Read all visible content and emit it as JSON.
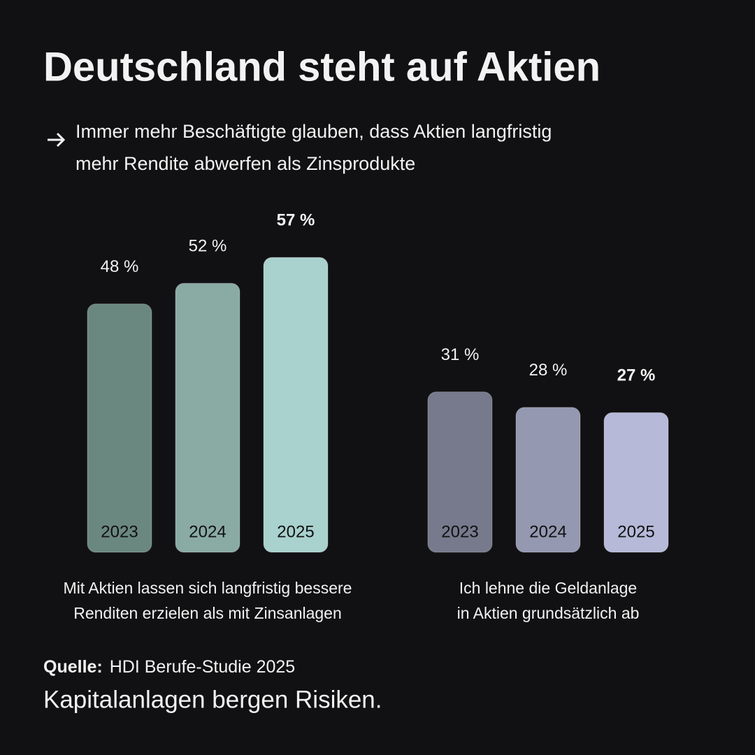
{
  "title": "Deutschland steht auf Aktien",
  "subtitle": [
    "Immer mehr Beschäftigte glauben, dass Aktien langfristig",
    "mehr Rendite abwerfen als Zinsprodukte"
  ],
  "source_label": "Quelle:",
  "source": "HDI Berufe-Studie 2025",
  "disclaimer": "Kapitalanlagen bergen Risiken.",
  "chart_data": [
    {
      "type": "bar",
      "categories": [
        "2023",
        "2024",
        "2025"
      ],
      "values": [
        48,
        52,
        57
      ],
      "value_labels": [
        "48 %",
        "52 %",
        "57 %"
      ],
      "colors": [
        "#6b8880",
        "#8aaba4",
        "#a9d1cd"
      ],
      "caption": [
        "Mit Aktien lassen sich langfristig bessere",
        "Renditen erzielen als mit Zinsanlagen"
      ]
    },
    {
      "type": "bar",
      "categories": [
        "2023",
        "2024",
        "2025"
      ],
      "values": [
        31,
        28,
        27
      ],
      "value_labels": [
        "31 %",
        "28 %",
        "27 %"
      ],
      "colors": [
        "#767a8c",
        "#9498b0",
        "#b6bad8"
      ],
      "caption": [
        "Ich lehne die Geldanlage",
        "in Aktien grundsätzlich ab"
      ]
    }
  ]
}
